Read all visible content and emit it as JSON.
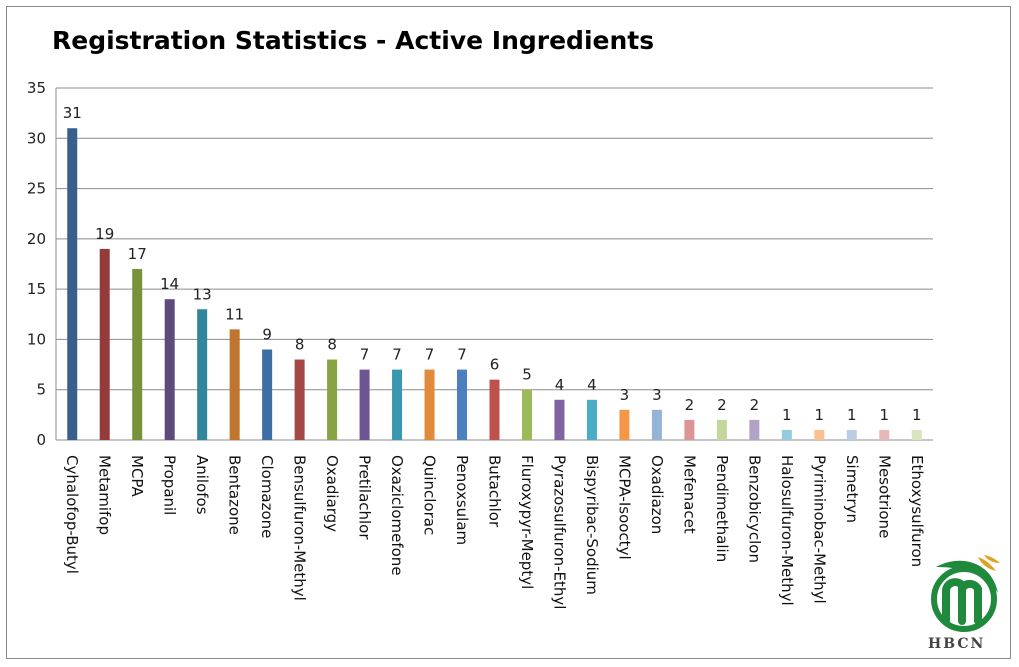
{
  "chart_data": {
    "type": "bar",
    "title": "Registration Statistics - Active Ingredients",
    "xlabel": "",
    "ylabel": "",
    "ylim": [
      0,
      35
    ],
    "yticks": [
      0,
      5,
      10,
      15,
      20,
      25,
      30,
      35
    ],
    "grid": true,
    "legend": "none",
    "categories": [
      "Cyhalofop-Butyl",
      "Metamifop",
      "MCPA",
      "Propanil",
      "Anilofos",
      "Bentazone",
      "Clomazone",
      "Bensulfuron-Methyl",
      "Oxadiargy",
      "Pretilachlor",
      "Oxaziclomefone",
      "Quinclorac",
      "Penoxsulam",
      "Butachlor",
      "Fluroxypyr-Meptyl",
      "Pyrazosulfuron-Ethyl",
      "Bispyribac-Sodium",
      "MCPA-Isooctyl",
      "Oxadiazon",
      "Mefenacet",
      "Pendimethalin",
      "Benzobicyclon",
      "Halosulfuron-Methyl",
      "Pyriminobac-Methyl",
      "Simetryn",
      "Mesotrione",
      "Ethoxysulfuron"
    ],
    "values": [
      31,
      19,
      17,
      14,
      13,
      11,
      9,
      8,
      8,
      7,
      7,
      7,
      7,
      6,
      5,
      4,
      4,
      3,
      3,
      2,
      2,
      2,
      1,
      1,
      1,
      1,
      1
    ],
    "colors": [
      "#3a5f8e",
      "#943a38",
      "#76933c",
      "#5f4a7c",
      "#31859c",
      "#c0742e",
      "#3d6fa6",
      "#a44846",
      "#86a442",
      "#6b5592",
      "#3a97b2",
      "#e08a3a",
      "#4a7fc0",
      "#c0504d",
      "#9bbb59",
      "#8064a2",
      "#4bacc6",
      "#f79646",
      "#95b3d7",
      "#d99694",
      "#c3d69b",
      "#b2a2c7",
      "#93cddd",
      "#fac090",
      "#b9cde5",
      "#e6b9b8",
      "#d7e4bd"
    ]
  },
  "logo": {
    "icon": "hbcn-leaf-logo-icon",
    "text": "HBCN",
    "colors": [
      "#1f8a3c",
      "#e0a020"
    ]
  }
}
